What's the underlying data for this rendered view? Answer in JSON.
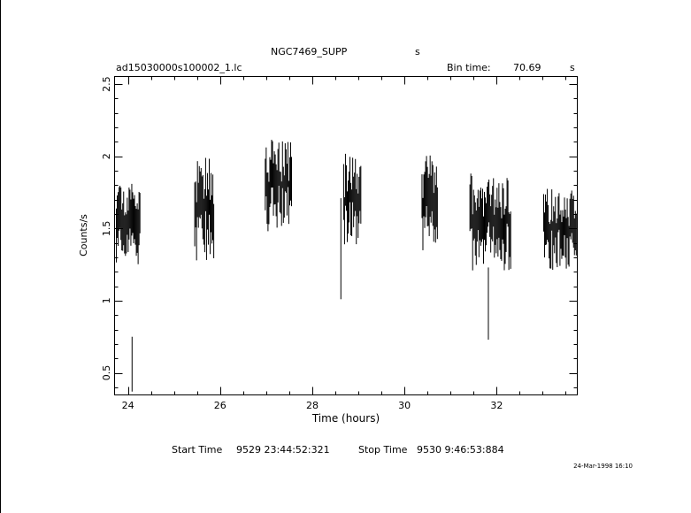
{
  "header": {
    "target": "NGC7469_SUPP",
    "instrument": "s",
    "filename": "ad15030000s100002_1.lc",
    "bin_time_label": "Bin time:",
    "bin_time_value": "70.69",
    "bin_time_unit": "s"
  },
  "footer": {
    "start_label": "Start Time",
    "start_value": "9529  23:44:52:321",
    "stop_label": "Stop Time",
    "stop_value": "9530   9:46:53:884",
    "plot_date": "24-Mar-1998 16:10"
  },
  "chart_data": {
    "type": "scatter",
    "title": "NGC7469_SUPP",
    "xlabel": "Time (hours)",
    "ylabel": "Counts/s",
    "xlim": [
      23.72,
      33.74
    ],
    "ylim": [
      0.35,
      2.55
    ],
    "xticks": [
      "24",
      "26",
      "28",
      "30",
      "32"
    ],
    "yticks": [
      "0.5",
      "1",
      "1.5",
      "2",
      "2.5"
    ],
    "grid": false,
    "legend": "none",
    "segments": [
      {
        "start": 23.75,
        "end": 24.28,
        "mean": 1.55,
        "err": 0.16,
        "amp": 0.11
      },
      {
        "start": 25.45,
        "end": 25.88,
        "mean": 1.64,
        "err": 0.19,
        "amp": 0.17
      },
      {
        "start": 26.98,
        "end": 27.55,
        "mean": 1.81,
        "err": 0.17,
        "amp": 0.14
      },
      {
        "start": 28.68,
        "end": 29.06,
        "mean": 1.69,
        "err": 0.18,
        "amp": 0.15
      },
      {
        "start": 30.38,
        "end": 30.72,
        "mean": 1.68,
        "err": 0.18,
        "amp": 0.16
      },
      {
        "start": 31.42,
        "end": 32.32,
        "mean": 1.55,
        "err": 0.17,
        "amp": 0.15
      },
      {
        "start": 33.02,
        "end": 33.74,
        "mean": 1.5,
        "err": 0.15,
        "amp": 0.13
      }
    ],
    "isolated_points": [
      {
        "x": 24.09,
        "y": 0.56,
        "err": 0.19
      },
      {
        "x": 31.82,
        "y": 0.98,
        "err": 0.25
      },
      {
        "x": 28.62,
        "y": 1.36,
        "err": 0.35
      }
    ]
  }
}
